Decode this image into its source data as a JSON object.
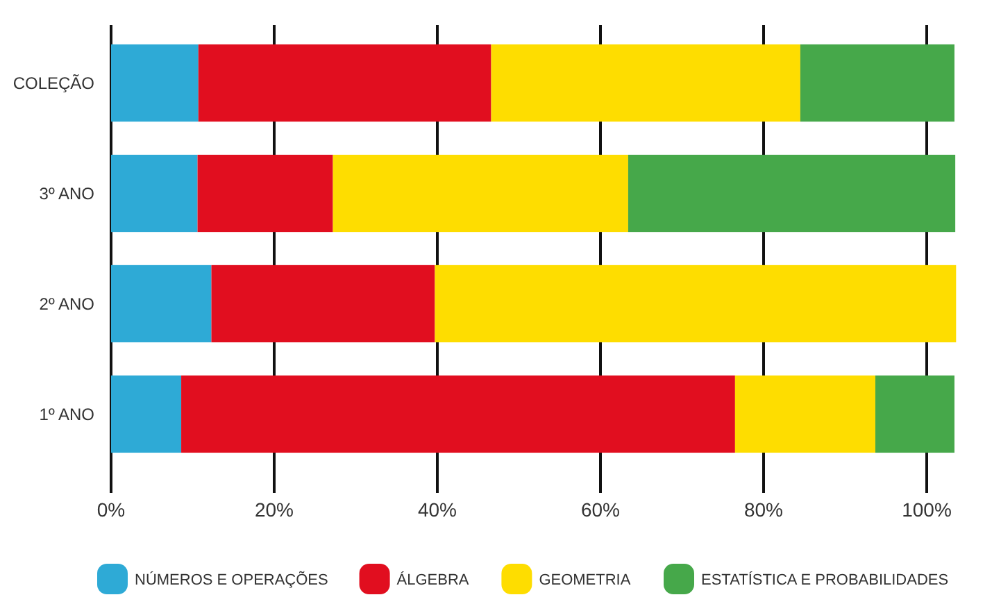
{
  "chart_data": {
    "type": "bar",
    "orientation": "horizontal",
    "stacked": true,
    "categories": [
      "COLEÇÃO",
      "3º ANO",
      "2º ANO",
      "1º ANO"
    ],
    "series": [
      {
        "name": "NÚMEROS E OPERAÇÕES",
        "color": "#2eaad6",
        "values": [
          10.7,
          10.6,
          12.3,
          8.6
        ]
      },
      {
        "name": "ÁLGEBRA",
        "color": "#e10e1f",
        "values": [
          35.9,
          16.6,
          27.4,
          67.9
        ]
      },
      {
        "name": "GEOMETRIA",
        "color": "#fedd00",
        "values": [
          37.9,
          36.2,
          63.9,
          17.2
        ]
      },
      {
        "name": "ESTATÍSTICA E PROBABILIDADES",
        "color": "#46a84a",
        "values": [
          18.9,
          40.1,
          0,
          9.7
        ]
      }
    ],
    "xlim": [
      0,
      104
    ],
    "xticks": [
      {
        "value": 0,
        "label": "0%"
      },
      {
        "value": 20,
        "label": "20%"
      },
      {
        "value": 40,
        "label": "40%"
      },
      {
        "value": 60,
        "label": "60%"
      },
      {
        "value": 80,
        "label": "80%"
      },
      {
        "value": 100,
        "label": "100%"
      }
    ],
    "grid": "x",
    "legend": "bottom"
  }
}
